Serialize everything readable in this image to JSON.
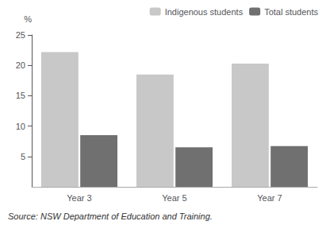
{
  "chart_data": {
    "type": "bar",
    "categories": [
      "Year 3",
      "Year 5",
      "Year 7"
    ],
    "series": [
      {
        "name": "Indigenous students",
        "color": "#c8c8c8",
        "values": [
          22.2,
          18.5,
          20.3
        ]
      },
      {
        "name": "Total students",
        "color": "#707070",
        "values": [
          8.5,
          6.5,
          6.7
        ]
      }
    ],
    "ylabel": "%",
    "ylim": [
      0,
      25
    ],
    "yticks": [
      5,
      10,
      15,
      20,
      25
    ],
    "grid": false,
    "legend": "upper right",
    "annotations": [
      "Source: NSW Department of Education and Training."
    ]
  }
}
